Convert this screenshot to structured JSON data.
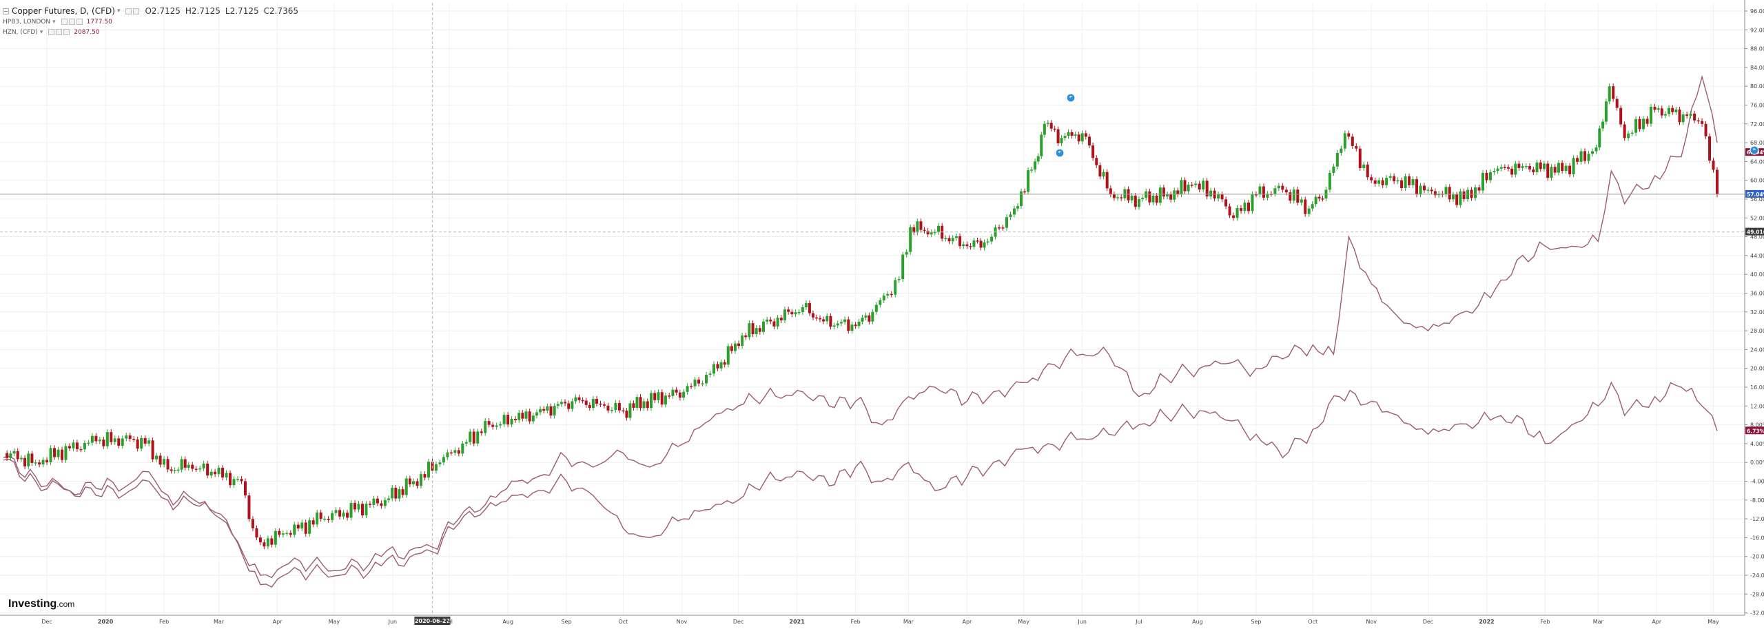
{
  "legend": {
    "main_title": "Copper Futures, D, (CFD)",
    "ohlc": {
      "open": "O2.7125",
      "high": "H2.7125",
      "low": "L2.7125",
      "close": "C2.7365"
    },
    "comp1_name": "HPB3, LONDON",
    "comp1_value": "1777.50",
    "comp2_name": "HZN, (CFD)",
    "comp2_value": "2087.50"
  },
  "logo": {
    "brand": "Investing",
    "domain": ".com"
  },
  "colors": {
    "up": "#2ca02c",
    "down": "#b0121b",
    "comparison": "#9a5b73",
    "crosshair_label": "#3a3a3a",
    "last_price": "#3060d0"
  },
  "icons": [
    "legend-toggle-icon",
    "settings-icon",
    "flag-marker-icon"
  ],
  "chart_data": {
    "type": "line",
    "title": "Copper Futures, D, (CFD)",
    "xlabel": "",
    "ylabel": "",
    "y_scale": "percent change",
    "ylim": [
      -33,
      98
    ],
    "y_ticks": [
      -32,
      -28,
      -24,
      -20,
      -16,
      -12,
      -8,
      -4,
      0,
      4,
      8,
      12,
      16,
      20,
      24,
      28,
      32,
      36,
      40,
      44,
      48,
      52,
      56,
      60,
      64,
      68,
      72,
      76,
      80,
      84,
      88,
      92,
      96
    ],
    "x_ticks": [
      {
        "label": "Dec",
        "x": "2019-12-01"
      },
      {
        "label": "2020",
        "x": "2020-01-01"
      },
      {
        "label": "Feb",
        "x": "2020-02-01"
      },
      {
        "label": "Mar",
        "x": "2020-03-01"
      },
      {
        "label": "Apr",
        "x": "2020-04-01"
      },
      {
        "label": "May",
        "x": "2020-05-01"
      },
      {
        "label": "Jun",
        "x": "2020-06-01"
      },
      {
        "label": "Jul",
        "x": "2020-07-01"
      },
      {
        "label": "Aug",
        "x": "2020-08-01"
      },
      {
        "label": "Sep",
        "x": "2020-09-01"
      },
      {
        "label": "Oct",
        "x": "2020-10-01"
      },
      {
        "label": "Nov",
        "x": "2020-11-01"
      },
      {
        "label": "Dec",
        "x": "2020-12-01"
      },
      {
        "label": "2021",
        "x": "2021-01-01"
      },
      {
        "label": "Feb",
        "x": "2021-02-01"
      },
      {
        "label": "Mar",
        "x": "2021-03-01"
      },
      {
        "label": "Apr",
        "x": "2021-04-01"
      },
      {
        "label": "May",
        "x": "2021-05-01"
      },
      {
        "label": "Jun",
        "x": "2021-06-01"
      },
      {
        "label": "Jul",
        "x": "2021-07-01"
      },
      {
        "label": "Aug",
        "x": "2021-08-01"
      },
      {
        "label": "Sep",
        "x": "2021-09-01"
      },
      {
        "label": "Oct",
        "x": "2021-10-01"
      },
      {
        "label": "Nov",
        "x": "2021-11-01"
      },
      {
        "label": "Dec",
        "x": "2021-12-01"
      },
      {
        "label": "2022",
        "x": "2022-01-01"
      },
      {
        "label": "Feb",
        "x": "2022-02-01"
      },
      {
        "label": "Mar",
        "x": "2022-03-01"
      },
      {
        "label": "Apr",
        "x": "2022-04-01"
      },
      {
        "label": "May",
        "x": "2022-05-01"
      }
    ],
    "x_range": [
      "2019-11-08",
      "2022-05-03"
    ],
    "crosshair": {
      "date_label": "2020-06-22",
      "value_label": "49.0161"
    },
    "price_labels": [
      {
        "text": "65.94%",
        "value": 65.94,
        "kind": "main"
      },
      {
        "text": "57.04%",
        "value": 57.04,
        "kind": "last"
      },
      {
        "text": "6.73%",
        "value": 6.73,
        "kind": "comparison"
      }
    ],
    "grid": true,
    "series": [
      {
        "name": "Copper Futures, D, (CFD)",
        "style": "candles",
        "points": [
          [
            "2019-11-08",
            2
          ],
          [
            "2019-11-25",
            0
          ],
          [
            "2019-12-13",
            3
          ],
          [
            "2019-12-27",
            4.5
          ],
          [
            "2020-01-14",
            5
          ],
          [
            "2020-01-22",
            4
          ],
          [
            "2020-02-03",
            -1.5
          ],
          [
            "2020-02-14",
            -0.5
          ],
          [
            "2020-02-28",
            -2.5
          ],
          [
            "2020-03-13",
            -4
          ],
          [
            "2020-03-19",
            -14
          ],
          [
            "2020-03-23",
            -17
          ],
          [
            "2020-04-06",
            -15
          ],
          [
            "2020-04-24",
            -12
          ],
          [
            "2020-05-12",
            -10
          ],
          [
            "2020-05-28",
            -8
          ],
          [
            "2020-06-12",
            -4
          ],
          [
            "2020-06-26",
            0
          ],
          [
            "2020-07-08",
            4
          ],
          [
            "2020-07-22",
            8
          ],
          [
            "2020-08-05",
            9
          ],
          [
            "2020-08-20",
            11
          ],
          [
            "2020-09-04",
            13
          ],
          [
            "2020-09-17",
            12.5
          ],
          [
            "2020-10-01",
            11
          ],
          [
            "2020-10-12",
            13
          ],
          [
            "2020-11-02",
            15
          ],
          [
            "2020-11-20",
            20
          ],
          [
            "2020-12-03",
            27
          ],
          [
            "2020-12-18",
            30
          ],
          [
            "2021-01-04",
            33
          ],
          [
            "2021-01-15",
            30
          ],
          [
            "2021-02-01",
            29
          ],
          [
            "2021-02-10",
            32
          ],
          [
            "2021-02-24",
            39
          ],
          [
            "2021-03-02",
            50
          ],
          [
            "2021-03-15",
            49
          ],
          [
            "2021-04-01",
            46
          ],
          [
            "2021-04-12",
            47
          ],
          [
            "2021-04-26",
            54
          ],
          [
            "2021-05-07",
            64
          ],
          [
            "2021-05-12",
            72
          ],
          [
            "2021-05-21",
            69
          ],
          [
            "2021-06-01",
            70
          ],
          [
            "2021-06-16",
            57
          ],
          [
            "2021-07-01",
            56
          ],
          [
            "2021-07-16",
            57
          ],
          [
            "2021-07-29",
            59
          ],
          [
            "2021-08-12",
            57
          ],
          [
            "2021-08-20",
            52
          ],
          [
            "2021-09-01",
            57
          ],
          [
            "2021-09-15",
            58
          ],
          [
            "2021-09-29",
            54
          ],
          [
            "2021-10-08",
            58
          ],
          [
            "2021-10-18",
            70
          ],
          [
            "2021-11-01",
            60
          ],
          [
            "2021-11-15",
            60
          ],
          [
            "2021-12-01",
            58
          ],
          [
            "2021-12-20",
            56
          ],
          [
            "2022-01-05",
            62
          ],
          [
            "2022-01-20",
            63
          ],
          [
            "2022-02-10",
            62
          ],
          [
            "2022-02-28",
            67
          ],
          [
            "2022-03-07",
            80
          ],
          [
            "2022-03-15",
            69
          ],
          [
            "2022-03-31",
            75
          ],
          [
            "2022-04-15",
            74
          ],
          [
            "2022-04-25",
            72
          ],
          [
            "2022-05-03",
            57
          ]
        ]
      },
      {
        "name": "HPB3, LONDON",
        "style": "line",
        "points": [
          [
            "2019-11-08",
            1
          ],
          [
            "2019-11-25",
            -3
          ],
          [
            "2019-12-13",
            -6
          ],
          [
            "2019-12-27",
            -5.5
          ],
          [
            "2020-01-14",
            -4.5
          ],
          [
            "2020-01-24",
            -2
          ],
          [
            "2020-02-03",
            -7
          ],
          [
            "2020-02-17",
            -8
          ],
          [
            "2020-03-02",
            -12
          ],
          [
            "2020-03-23",
            -24
          ],
          [
            "2020-04-13",
            -21
          ],
          [
            "2020-05-04",
            -23
          ],
          [
            "2020-05-26",
            -20
          ],
          [
            "2020-06-22",
            -18
          ],
          [
            "2020-07-06",
            -12
          ],
          [
            "2020-07-20",
            -9
          ],
          [
            "2020-08-03",
            -4
          ],
          [
            "2020-08-17",
            -3
          ],
          [
            "2020-09-01",
            1
          ],
          [
            "2020-09-15",
            -1
          ],
          [
            "2020-10-01",
            2
          ],
          [
            "2020-10-15",
            -1
          ],
          [
            "2020-11-02",
            4
          ],
          [
            "2020-11-16",
            9
          ],
          [
            "2020-12-01",
            12
          ],
          [
            "2020-12-15",
            14
          ],
          [
            "2021-01-04",
            15
          ],
          [
            "2021-01-18",
            12
          ],
          [
            "2021-02-01",
            13
          ],
          [
            "2021-02-15",
            8
          ],
          [
            "2021-03-01",
            14
          ],
          [
            "2021-03-15",
            16
          ],
          [
            "2021-04-01",
            13
          ],
          [
            "2021-04-15",
            15
          ],
          [
            "2021-05-03",
            17
          ],
          [
            "2021-05-14",
            21
          ],
          [
            "2021-06-01",
            23
          ],
          [
            "2021-06-15",
            23
          ],
          [
            "2021-07-01",
            14
          ],
          [
            "2021-07-15",
            18
          ],
          [
            "2021-08-02",
            20
          ],
          [
            "2021-08-16",
            21
          ],
          [
            "2021-09-01",
            20
          ],
          [
            "2021-09-15",
            22
          ],
          [
            "2021-10-01",
            25
          ],
          [
            "2021-10-12",
            23
          ],
          [
            "2021-10-20",
            48
          ],
          [
            "2021-11-01",
            38
          ],
          [
            "2021-11-15",
            31
          ],
          [
            "2021-12-01",
            28
          ],
          [
            "2021-12-15",
            31
          ],
          [
            "2022-01-03",
            35
          ],
          [
            "2022-01-17",
            43
          ],
          [
            "2022-02-01",
            46
          ],
          [
            "2022-02-15",
            46
          ],
          [
            "2022-03-01",
            47
          ],
          [
            "2022-03-08",
            62
          ],
          [
            "2022-03-15",
            55
          ],
          [
            "2022-03-31",
            61
          ],
          [
            "2022-04-14",
            65
          ],
          [
            "2022-04-25",
            82
          ],
          [
            "2022-05-03",
            68
          ]
        ]
      },
      {
        "name": "HZN, (CFD)",
        "style": "line",
        "points": [
          [
            "2019-11-08",
            0.5
          ],
          [
            "2019-11-25",
            -4
          ],
          [
            "2019-12-13",
            -6
          ],
          [
            "2019-12-27",
            -7
          ],
          [
            "2020-01-14",
            -6
          ],
          [
            "2020-01-24",
            -4
          ],
          [
            "2020-02-03",
            -8
          ],
          [
            "2020-02-17",
            -9
          ],
          [
            "2020-03-02",
            -11
          ],
          [
            "2020-03-23",
            -26
          ],
          [
            "2020-04-13",
            -23
          ],
          [
            "2020-05-04",
            -24
          ],
          [
            "2020-05-26",
            -22
          ],
          [
            "2020-06-22",
            -19
          ],
          [
            "2020-07-06",
            -13
          ],
          [
            "2020-07-20",
            -10
          ],
          [
            "2020-08-03",
            -7
          ],
          [
            "2020-08-17",
            -6
          ],
          [
            "2020-09-01",
            -4
          ],
          [
            "2020-09-15",
            -7
          ],
          [
            "2020-10-01",
            -14
          ],
          [
            "2020-10-15",
            -16
          ],
          [
            "2020-11-02",
            -12
          ],
          [
            "2020-11-16",
            -10
          ],
          [
            "2020-12-01",
            -8
          ],
          [
            "2020-12-15",
            -4
          ],
          [
            "2021-01-04",
            -2
          ],
          [
            "2021-01-18",
            -5
          ],
          [
            "2021-02-01",
            -1
          ],
          [
            "2021-02-15",
            -4
          ],
          [
            "2021-03-01",
            0
          ],
          [
            "2021-03-15",
            -6
          ],
          [
            "2021-04-01",
            -3
          ],
          [
            "2021-04-15",
            0
          ],
          [
            "2021-05-03",
            3
          ],
          [
            "2021-05-14",
            4
          ],
          [
            "2021-06-01",
            5
          ],
          [
            "2021-06-15",
            6
          ],
          [
            "2021-07-01",
            8
          ],
          [
            "2021-07-15",
            10
          ],
          [
            "2021-08-02",
            11
          ],
          [
            "2021-08-16",
            9
          ],
          [
            "2021-09-01",
            6
          ],
          [
            "2021-09-15",
            1
          ],
          [
            "2021-10-01",
            7
          ],
          [
            "2021-10-15",
            14
          ],
          [
            "2021-11-01",
            13
          ],
          [
            "2021-11-15",
            10
          ],
          [
            "2021-12-01",
            6
          ],
          [
            "2021-12-15",
            8
          ],
          [
            "2022-01-03",
            9
          ],
          [
            "2022-01-17",
            10
          ],
          [
            "2022-02-01",
            4
          ],
          [
            "2022-02-15",
            8
          ],
          [
            "2022-03-01",
            12
          ],
          [
            "2022-03-08",
            17
          ],
          [
            "2022-03-15",
            10
          ],
          [
            "2022-03-31",
            14
          ],
          [
            "2022-04-14",
            16
          ],
          [
            "2022-04-25",
            12
          ],
          [
            "2022-05-03",
            6.7
          ]
        ]
      }
    ]
  }
}
